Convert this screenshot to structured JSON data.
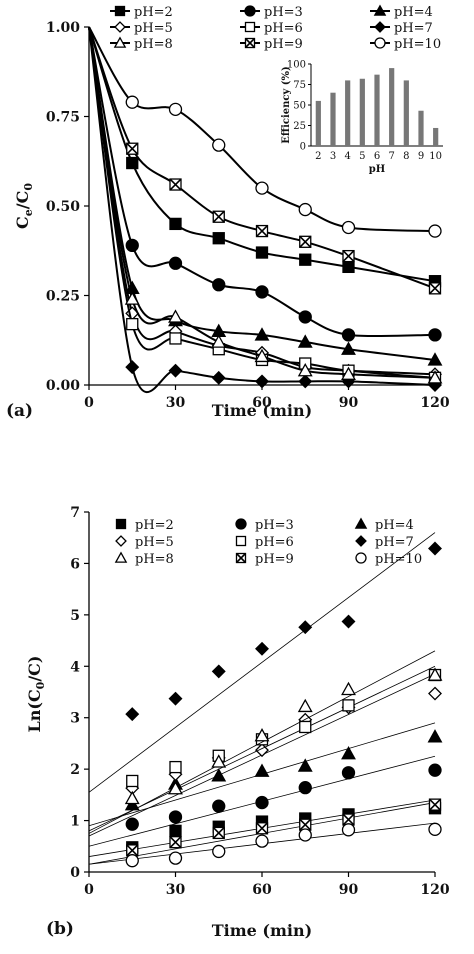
{
  "chart_data": [
    {
      "type": "line",
      "panel_label": "(a)",
      "xlabel": "Time (min)",
      "ylabel": "Ce/C0",
      "xlim": [
        0,
        120
      ],
      "ylim": [
        0,
        1
      ],
      "x_ticks": [
        0,
        30,
        60,
        90,
        120
      ],
      "y_ticks": [
        "0.00",
        "0.25",
        "0.50",
        "0.75",
        "1.00"
      ],
      "legend_position": "top",
      "grid": false,
      "x": [
        0,
        15,
        30,
        45,
        60,
        75,
        90,
        120
      ],
      "series": [
        {
          "name": "pH=2",
          "marker": "square-filled",
          "values": [
            1.0,
            0.62,
            0.45,
            0.41,
            0.37,
            0.35,
            0.33,
            0.29
          ]
        },
        {
          "name": "pH=3",
          "marker": "circle-filled",
          "values": [
            1.0,
            0.39,
            0.34,
            0.28,
            0.26,
            0.19,
            0.14,
            0.14
          ]
        },
        {
          "name": "pH=4",
          "marker": "triangle-filled",
          "values": [
            1.0,
            0.27,
            0.18,
            0.15,
            0.14,
            0.12,
            0.1,
            0.07
          ]
        },
        {
          "name": "pH=5",
          "marker": "diamond-open",
          "values": [
            1.0,
            0.2,
            0.15,
            0.11,
            0.09,
            0.05,
            0.04,
            0.03
          ]
        },
        {
          "name": "pH=6",
          "marker": "square-open",
          "values": [
            1.0,
            0.17,
            0.13,
            0.1,
            0.07,
            0.06,
            0.04,
            0.02
          ]
        },
        {
          "name": "pH=7",
          "marker": "diamond-filled",
          "values": [
            1.0,
            0.05,
            0.04,
            0.02,
            0.01,
            0.01,
            0.01,
            0.0
          ]
        },
        {
          "name": "pH=8",
          "marker": "triangle-open",
          "values": [
            1.0,
            0.24,
            0.19,
            0.12,
            0.08,
            0.04,
            0.03,
            0.02
          ]
        },
        {
          "name": "pH=9",
          "marker": "square-x",
          "values": [
            1.0,
            0.66,
            0.56,
            0.47,
            0.43,
            0.4,
            0.36,
            0.27
          ]
        },
        {
          "name": "pH=10",
          "marker": "circle-open",
          "values": [
            1.0,
            0.79,
            0.77,
            0.67,
            0.55,
            0.49,
            0.44,
            0.43
          ]
        }
      ],
      "inset": {
        "type": "bar",
        "xlabel": "pH",
        "ylabel": "Efficiency (%)",
        "ylim": [
          0,
          100
        ],
        "y_ticks": [
          0,
          25,
          50,
          75,
          100
        ],
        "categories": [
          "2",
          "3",
          "4",
          "5",
          "6",
          "7",
          "8",
          "9",
          "10"
        ],
        "values": [
          55,
          65,
          80,
          82,
          87,
          95,
          80,
          43,
          22
        ],
        "color": "#777777"
      }
    },
    {
      "type": "scatter",
      "panel_label": "(b)",
      "xlabel": "Time (min)",
      "ylabel": "Ln(C0/C)",
      "xlim": [
        0,
        120
      ],
      "ylim": [
        0,
        7
      ],
      "x_ticks": [
        0,
        30,
        60,
        90,
        120
      ],
      "y_ticks": [
        0,
        1,
        2,
        3,
        4,
        5,
        6,
        7
      ],
      "legend_position": "top",
      "grid": false,
      "x": [
        15,
        30,
        45,
        60,
        75,
        90,
        120
      ],
      "series": [
        {
          "name": "pH=2",
          "marker": "square-filled",
          "values": [
            0.48,
            0.8,
            0.88,
            0.98,
            1.04,
            1.12,
            1.24
          ],
          "fit": [
            0.3,
            1.4
          ]
        },
        {
          "name": "pH=3",
          "marker": "circle-filled",
          "values": [
            0.93,
            1.07,
            1.28,
            1.35,
            1.64,
            1.93,
            1.98
          ],
          "fit": [
            0.5,
            2.25
          ]
        },
        {
          "name": "pH=4",
          "marker": "triangle-filled",
          "values": [
            1.31,
            1.71,
            1.87,
            1.96,
            2.06,
            2.3,
            2.63
          ],
          "fit": [
            0.9,
            2.9
          ]
        },
        {
          "name": "pH=5",
          "marker": "diamond-open",
          "values": [
            1.63,
            1.9,
            2.22,
            2.37,
            2.96,
            3.2,
            3.47
          ],
          "fit": [
            0.7,
            3.85
          ]
        },
        {
          "name": "pH=6",
          "marker": "square-open",
          "values": [
            1.77,
            2.04,
            2.26,
            2.58,
            2.82,
            3.24,
            3.83
          ],
          "fit": [
            0.8,
            4.0
          ]
        },
        {
          "name": "pH=7",
          "marker": "diamond-filled",
          "values": [
            3.07,
            3.37,
            3.9,
            4.34,
            4.76,
            4.87,
            6.29
          ],
          "fit": [
            1.55,
            6.6
          ]
        },
        {
          "name": "pH=8",
          "marker": "triangle-open",
          "values": [
            1.43,
            1.62,
            2.14,
            2.65,
            3.22,
            3.55,
            3.83
          ],
          "fit": [
            0.75,
            4.3
          ]
        },
        {
          "name": "pH=9",
          "marker": "square-x",
          "values": [
            0.42,
            0.58,
            0.76,
            0.85,
            0.92,
            1.02,
            1.31
          ],
          "fit": [
            0.15,
            1.35
          ]
        },
        {
          "name": "pH=10",
          "marker": "circle-open",
          "values": [
            0.22,
            0.27,
            0.4,
            0.6,
            0.72,
            0.82,
            0.83
          ],
          "fit": [
            0.15,
            0.95
          ]
        }
      ]
    }
  ]
}
